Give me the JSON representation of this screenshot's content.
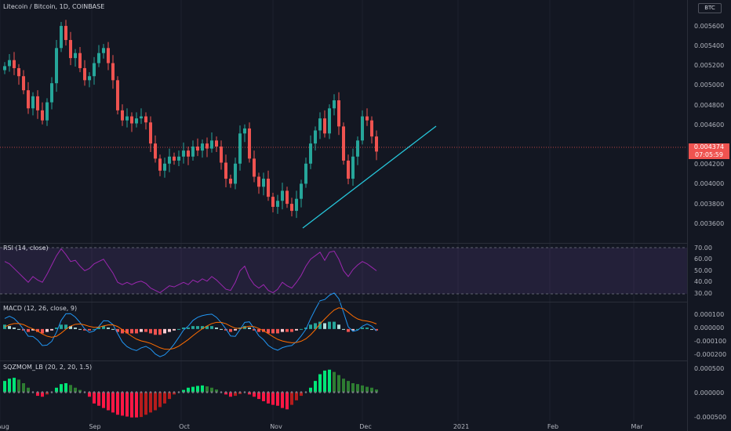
{
  "header": {
    "title": "Litecoin / Bitcoin, 1D, COINBASE",
    "currency_badge": "BTC"
  },
  "price_axis": {
    "labels": [
      "0.005600",
      "0.005400",
      "0.005200",
      "0.005000",
      "0.004800",
      "0.004600",
      "0.004200",
      "0.004000",
      "0.003800",
      "0.003600"
    ]
  },
  "last_price": {
    "value": "0.004374",
    "countdown": "07:05:59"
  },
  "rsi": {
    "title": "RSI (14, close)",
    "labels": [
      "70.00",
      "60.00",
      "50.00",
      "40.00",
      "30.00"
    ]
  },
  "macd": {
    "title": "MACD (12, 26, close, 9)",
    "labels": [
      "0.000100",
      "0.000000",
      "-0.000100",
      "-0.000200"
    ]
  },
  "sqz": {
    "title": "SQZMOM_LB (20, 2, 20, 1.5)",
    "labels": [
      "0.000500",
      "0.000000",
      "-0.000500"
    ]
  },
  "time_axis": {
    "labels": [
      "Aug",
      "Sep",
      "Oct",
      "Nov",
      "Dec",
      "2021",
      "Feb",
      "Mar"
    ]
  },
  "colors": {
    "up": "#26a69a",
    "down": "#ef5350",
    "rsi_line": "#9c27b0",
    "trend": "#26c6da",
    "macd": "#2196f3",
    "signal": "#ff6d00",
    "sqz_up": "#4caf50",
    "sqz_down": "#d32f2f"
  },
  "chart_data": [
    {
      "type": "candlestick",
      "title": "Litecoin / Bitcoin, 1D, COINBASE",
      "ylim": [
        0.0035,
        0.0058
      ],
      "series": [
        {
          "values": [
            0.00522,
            0.00528,
            0.0052,
            0.00512,
            0.00498,
            0.0048,
            0.00492,
            0.00478,
            0.00468,
            0.00486,
            0.00505,
            0.0054,
            0.00562,
            0.00548,
            0.0053,
            0.00535,
            0.0052,
            0.00508,
            0.00512,
            0.00525,
            0.00535,
            0.0054,
            0.00525,
            0.00508,
            0.00478,
            0.00468,
            0.00472,
            0.00465,
            0.0047,
            0.00472,
            0.00466,
            0.00445,
            0.0043,
            0.00418,
            0.00425,
            0.00432,
            0.00428,
            0.00432,
            0.00438,
            0.00432,
            0.00442,
            0.00438,
            0.00445,
            0.0044,
            0.00448,
            0.00442,
            0.00426,
            0.0041,
            0.00405,
            0.00425,
            0.00455,
            0.0046,
            0.0043,
            0.00412,
            0.00402,
            0.0041,
            0.00392,
            0.00382,
            0.00388,
            0.00398,
            0.00385,
            0.00378,
            0.0039,
            0.00405,
            0.00425,
            0.00445,
            0.00458,
            0.0047,
            0.00455,
            0.0048,
            0.00488,
            0.00462,
            0.00428,
            0.0041,
            0.00432,
            0.00448,
            0.00472,
            0.00468,
            0.00452,
            0.00437
          ]
        }
      ]
    },
    {
      "type": "line",
      "title": "RSI (14, close)",
      "ylim": [
        30,
        70
      ],
      "series": [
        {
          "values": [
            58,
            56,
            52,
            48,
            44,
            40,
            45,
            42,
            40,
            47,
            55,
            63,
            69,
            64,
            58,
            59,
            54,
            50,
            52,
            56,
            58,
            60,
            54,
            48,
            40,
            38,
            40,
            38,
            40,
            41,
            39,
            35,
            33,
            31,
            34,
            37,
            36,
            38,
            40,
            38,
            42,
            40,
            43,
            41,
            45,
            42,
            38,
            34,
            33,
            40,
            50,
            54,
            44,
            38,
            35,
            38,
            33,
            31,
            34,
            40,
            37,
            35,
            40,
            46,
            54,
            60,
            63,
            66,
            59,
            66,
            67,
            60,
            50,
            45,
            51,
            55,
            58,
            56,
            53,
            50
          ]
        }
      ]
    },
    {
      "type": "bar",
      "title": "MACD (12, 26, close, 9)",
      "ylim": [
        -0.0002,
        0.00015
      ],
      "series": [
        {
          "values": [
            3e-05,
            2e-05,
            1e-05,
            0.0,
            -1e-05,
            -2e-05,
            -1e-05,
            -2e-05,
            -3e-05,
            -2e-05,
            -1e-05,
            1e-05,
            3e-05,
            3e-05,
            2e-05,
            1e-05,
            0.0,
            -1e-05,
            -1e-05,
            0.0,
            1e-05,
            2e-05,
            1e-05,
            0.0,
            -2e-05,
            -3e-05,
            -3e-05,
            -3e-05,
            -3e-05,
            -2e-05,
            -2e-05,
            -3e-05,
            -4e-05,
            -4e-05,
            -3e-05,
            -2e-05,
            -1e-05,
            0.0,
            1e-05,
            1e-05,
            2e-05,
            2e-05,
            2e-05,
            2e-05,
            2e-05,
            1e-05,
            0.0,
            -1e-05,
            -2e-05,
            -1e-05,
            1e-05,
            2e-05,
            1e-05,
            -1e-05,
            -2e-05,
            -2e-05,
            -3e-05,
            -3e-05,
            -3e-05,
            -2e-05,
            -2e-05,
            -2e-05,
            -1e-05,
            0.0,
            1e-05,
            3e-05,
            4e-05,
            5e-05,
            4e-05,
            5e-05,
            5e-05,
            3e-05,
            0.0,
            -2e-05,
            -1e-05,
            0.0,
            1e-05,
            1e-05,
            0.0,
            -1e-05
          ]
        }
      ]
    },
    {
      "type": "bar",
      "title": "SQZMOM_LB (20, 2, 20, 1.5)",
      "ylim": [
        -0.0006,
        0.0006
      ],
      "series": [
        {
          "values": [
            0.00025,
            0.0003,
            0.00032,
            0.00028,
            0.0002,
            0.0001,
            0.0,
            -8e-05,
            -0.0001,
            -5e-05,
            0.0,
            0.0001,
            0.00018,
            0.0002,
            0.00016,
            0.0001,
            5e-05,
            0.0,
            -0.0001,
            -0.00025,
            -0.0003,
            -0.00035,
            -0.0004,
            -0.00045,
            -0.0005,
            -0.00052,
            -0.00054,
            -0.00056,
            -0.00056,
            -0.00055,
            -0.0005,
            -0.00045,
            -0.0004,
            -0.00033,
            -0.00025,
            -0.00015,
            -5e-05,
            0.0,
            5e-05,
            0.0001,
            0.00012,
            0.00014,
            0.00015,
            0.00013,
            0.0001,
            6e-05,
            0.0,
            -5e-05,
            -0.0001,
            -8e-05,
            -4e-05,
            0.0,
            -5e-05,
            -0.0001,
            -0.00015,
            -0.0002,
            -0.00025,
            -0.00028,
            -0.0003,
            -0.00035,
            -0.00038,
            -0.00028,
            -0.00018,
            -8e-05,
            0.0,
            0.0001,
            0.00025,
            0.0004,
            0.00048,
            0.0005,
            0.00045,
            0.00038,
            0.0003,
            0.00025,
            0.0002,
            0.00018,
            0.00015,
            0.00012,
            0.0001,
            6e-05
          ]
        }
      ]
    }
  ]
}
